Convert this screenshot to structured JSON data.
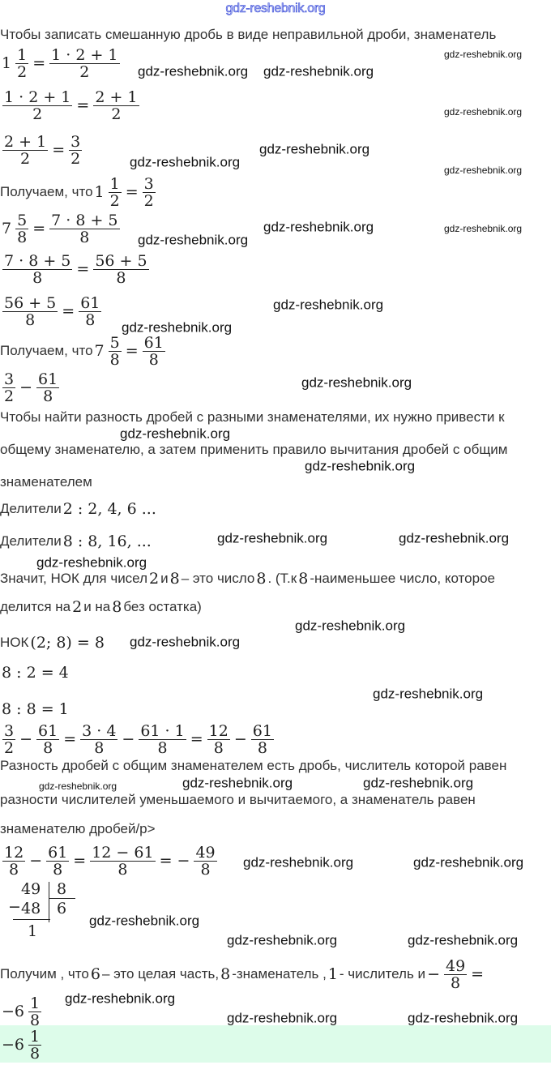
{
  "watermark_header": "gdz-reshebnik.org",
  "watermark": "gdz-reshebnik.org",
  "lines": [
    [
      {
        "t": "Чтобы записать смешанную дробь в виде неправильной дроби, знаменатель"
      }
    ],
    [
      {
        "m": "1"
      },
      {
        "f": [
          "1",
          "2"
        ]
      },
      {
        "m": "="
      },
      {
        "f": [
          "1 · 2 + 1",
          "2"
        ]
      }
    ],
    [
      {
        "f": [
          "1 · 2 + 1",
          "2"
        ]
      },
      {
        "m": "="
      },
      {
        "f": [
          "2 + 1",
          "2"
        ]
      }
    ],
    [
      {
        "f": [
          "2 + 1",
          "2"
        ]
      },
      {
        "m": "="
      },
      {
        "f": [
          "3",
          "2"
        ]
      }
    ],
    [
      {
        "t": "Получаем, что "
      },
      {
        "m": "1"
      },
      {
        "f": [
          "1",
          "2"
        ]
      },
      {
        "m": "="
      },
      {
        "f": [
          "3",
          "2"
        ]
      }
    ],
    [
      {
        "m": "7"
      },
      {
        "f": [
          "5",
          "8"
        ]
      },
      {
        "m": "="
      },
      {
        "f": [
          "7 · 8 + 5",
          "8"
        ]
      }
    ],
    [
      {
        "f": [
          "7 · 8 + 5",
          "8"
        ]
      },
      {
        "m": "="
      },
      {
        "f": [
          "56 + 5",
          "8"
        ]
      }
    ],
    [
      {
        "f": [
          "56 + 5",
          "8"
        ]
      },
      {
        "m": "="
      },
      {
        "f": [
          "61",
          "8"
        ]
      }
    ],
    [
      {
        "t": "Получаем, что "
      },
      {
        "m": "7"
      },
      {
        "f": [
          "5",
          "8"
        ]
      },
      {
        "m": "="
      },
      {
        "f": [
          "61",
          "8"
        ]
      }
    ],
    [
      {
        "f": [
          "3",
          "2"
        ]
      },
      {
        "m": "−"
      },
      {
        "f": [
          "61",
          "8"
        ]
      }
    ],
    [
      {
        "t": "Чтобы найти разность дробей с разными знаменателями, их нужно привести к"
      }
    ],
    [
      {
        "t": "общему знаменателю, а затем применить правило вычитания дробей с общим"
      }
    ],
    [
      {
        "t": "знаменателем"
      }
    ],
    [
      {
        "t": "Делители "
      },
      {
        "m": "2 : 2, 4, 6 ..."
      }
    ],
    [
      {
        "t": "Делители "
      },
      {
        "m": "8 : 8, 16, ..."
      }
    ],
    [
      {
        "t": "Значит, НОК для чисел "
      },
      {
        "m": "2"
      },
      {
        "t": " и "
      },
      {
        "m": "8"
      },
      {
        "t": "– это число "
      },
      {
        "m": "8"
      },
      {
        "t": ". (Т.к "
      },
      {
        "m": "8"
      },
      {
        "t": " -наименьшее число, которое"
      }
    ],
    [
      {
        "t": "делится на "
      },
      {
        "m": "2"
      },
      {
        "t": " и на "
      },
      {
        "m": "8"
      },
      {
        "t": " без остатка)"
      }
    ],
    [
      {
        "t": "НОК "
      },
      {
        "m": "(2; 8) = 8"
      }
    ],
    [
      {
        "m": "8 : 2 = 4"
      }
    ],
    [
      {
        "m": "8 : 8 = 1"
      }
    ],
    [
      {
        "f": [
          "3",
          "2"
        ]
      },
      {
        "m": "−"
      },
      {
        "f": [
          "61",
          "8"
        ]
      },
      {
        "m": "="
      },
      {
        "f": [
          "3 · 4",
          "8"
        ]
      },
      {
        "m": "−"
      },
      {
        "f": [
          "61 · 1",
          "8"
        ]
      },
      {
        "m": "="
      },
      {
        "f": [
          "12",
          "8"
        ]
      },
      {
        "m": "−"
      },
      {
        "f": [
          "61",
          "8"
        ]
      }
    ],
    [
      {
        "t": "Разность дробей с общим знаменателем есть дробь, числитель которой равен"
      }
    ],
    [
      {
        "t": "разности числителей уменьшаемого и вычитаемого, а знаменатель равен"
      }
    ],
    [
      {
        "t": "знаменателю дробей/р>"
      }
    ],
    [
      {
        "f": [
          "12",
          "8"
        ]
      },
      {
        "m": "−"
      },
      {
        "f": [
          "61",
          "8"
        ]
      },
      {
        "m": "="
      },
      {
        "f": [
          "12 − 61",
          "8"
        ]
      },
      {
        "m": "= −"
      },
      {
        "f": [
          "49",
          "8"
        ]
      }
    ],
    [
      {
        "t": "Получим , что "
      },
      {
        "m": "6"
      },
      {
        "t": " – это целая часть, "
      },
      {
        "m": "8"
      },
      {
        "t": " -знаменатель , "
      },
      {
        "m": "1"
      },
      {
        "t": " - числитель и "
      },
      {
        "m": "−"
      },
      {
        "f": [
          "49",
          "8"
        ]
      },
      {
        "m": "="
      }
    ],
    [
      {
        "m": "−6"
      },
      {
        "f": [
          "1",
          "8"
        ]
      }
    ],
    [
      {
        "m": "−6"
      },
      {
        "f": [
          "1",
          "8"
        ]
      }
    ]
  ],
  "long_division": {
    "dividend": "49",
    "divisor": "8",
    "subtrahend": "48",
    "quotient": "6",
    "remainder": "1",
    "minus": "−"
  },
  "colors": {
    "answer_background": "#ddfcea",
    "watermark_header": "#3446d6"
  }
}
